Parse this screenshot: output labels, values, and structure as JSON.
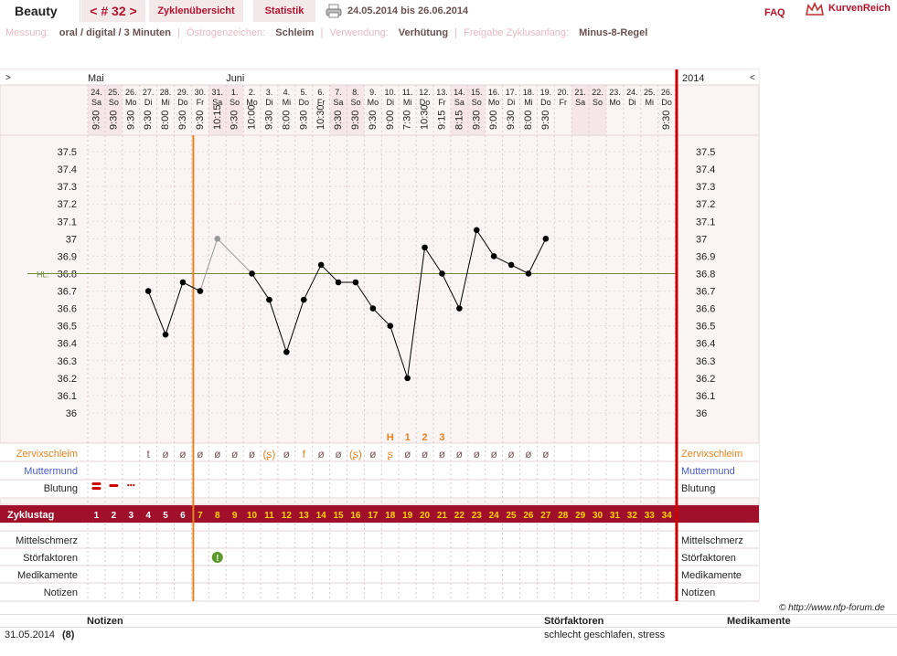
{
  "header": {
    "title": "Beauty",
    "cycle_nav": "< # 32 >",
    "tab_overview": "Zyklenübersicht",
    "tab_stats": "Statistik",
    "date_range": "24.05.2014 bis 26.06.2014",
    "faq": "FAQ",
    "brand": "KurvenReich"
  },
  "meta": {
    "measure_label": "Messung:",
    "measure_value": "oral / digital / 3 Minuten",
    "estro_label": "Östrogenzeichen:",
    "estro_value": "Schleim",
    "use_label": "Verwendung:",
    "use_value": "Verhütung",
    "release_label": "Freigabe Zyklusanfang:",
    "release_value": "Minus-8-Regel"
  },
  "nav": {
    "prev": ">",
    "next": "<",
    "year": "2014"
  },
  "months": [
    {
      "name": "Mai",
      "start_index": 0
    },
    {
      "name": "Juni",
      "start_index": 8
    }
  ],
  "days": [
    {
      "date": "24.",
      "wd": "Sa",
      "time": "9:30",
      "we": true
    },
    {
      "date": "25.",
      "wd": "So",
      "time": "9:30",
      "we": true
    },
    {
      "date": "26.",
      "wd": "Mo",
      "time": "9:30",
      "we": false
    },
    {
      "date": "27.",
      "wd": "Di",
      "time": "9:30",
      "we": false
    },
    {
      "date": "28.",
      "wd": "Mi",
      "time": "8:00",
      "we": false
    },
    {
      "date": "29.",
      "wd": "Do",
      "time": "9:30",
      "we": false
    },
    {
      "date": "30.",
      "wd": "Fr",
      "time": "9:30",
      "we": false
    },
    {
      "date": "31.",
      "wd": "Sa",
      "time": "10:15",
      "we": true
    },
    {
      "date": "1.",
      "wd": "So",
      "time": "9:30",
      "we": true
    },
    {
      "date": "2.",
      "wd": "Mo",
      "time": "10:00",
      "we": false
    },
    {
      "date": "3.",
      "wd": "Di",
      "time": "9:30",
      "we": false
    },
    {
      "date": "4.",
      "wd": "Mi",
      "time": "8:00",
      "we": false
    },
    {
      "date": "5.",
      "wd": "Do",
      "time": "9:30",
      "we": false
    },
    {
      "date": "6.",
      "wd": "Fr",
      "time": "10:30",
      "we": false
    },
    {
      "date": "7.",
      "wd": "Sa",
      "time": "9:30",
      "we": true
    },
    {
      "date": "8.",
      "wd": "So",
      "time": "9:30",
      "we": true
    },
    {
      "date": "9.",
      "wd": "Mo",
      "time": "9:30",
      "we": false
    },
    {
      "date": "10.",
      "wd": "Di",
      "time": "9:00",
      "we": false
    },
    {
      "date": "11.",
      "wd": "Mi",
      "time": "7:30",
      "we": false
    },
    {
      "date": "12.",
      "wd": "Do",
      "time": "10:30",
      "we": false
    },
    {
      "date": "13.",
      "wd": "Fr",
      "time": "9:15",
      "we": false
    },
    {
      "date": "14.",
      "wd": "Sa",
      "time": "8:15",
      "we": true
    },
    {
      "date": "15.",
      "wd": "So",
      "time": "9:30",
      "we": true
    },
    {
      "date": "16.",
      "wd": "Mo",
      "time": "9:00",
      "we": false
    },
    {
      "date": "17.",
      "wd": "Di",
      "time": "9:30",
      "we": false
    },
    {
      "date": "18.",
      "wd": "Mi",
      "time": "8:00",
      "we": false
    },
    {
      "date": "19.",
      "wd": "Do",
      "time": "9:30",
      "we": false
    },
    {
      "date": "20.",
      "wd": "Fr",
      "time": "",
      "we": false
    },
    {
      "date": "21.",
      "wd": "Sa",
      "time": "",
      "we": true
    },
    {
      "date": "22.",
      "wd": "So",
      "time": "",
      "we": true
    },
    {
      "date": "23.",
      "wd": "Mo",
      "time": "",
      "we": false
    },
    {
      "date": "24.",
      "wd": "Di",
      "time": "",
      "we": false
    },
    {
      "date": "25.",
      "wd": "Mi",
      "time": "",
      "we": false
    },
    {
      "date": "26.",
      "wd": "Do",
      "time": "9:30",
      "we": false
    }
  ],
  "chart_data": {
    "type": "line",
    "yticks": [
      "37.5",
      "37.4",
      "37.3",
      "37.2",
      "37.1",
      "37",
      "36.9",
      "36.8",
      "36.7",
      "36.6",
      "36.5",
      "36.4",
      "36.3",
      "36.2",
      "36.1",
      "36"
    ],
    "ylim": [
      36.0,
      37.5
    ],
    "hl_label": "HL:",
    "hl_value": 36.8,
    "cycle_days": [
      1,
      2,
      3,
      4,
      5,
      6,
      7,
      8,
      9,
      10,
      11,
      12,
      13,
      14,
      15,
      16,
      17,
      18,
      19,
      20,
      21,
      22,
      23,
      24,
      25,
      26,
      27,
      28,
      29,
      30,
      31,
      32,
      33,
      34
    ],
    "series": [
      {
        "values": [
          null,
          null,
          null,
          36.7,
          36.45,
          36.75,
          36.7,
          37.0,
          null,
          36.8,
          36.65,
          36.35,
          36.65,
          36.85,
          36.75,
          36.75,
          36.6,
          36.5,
          36.2,
          36.95,
          36.8,
          36.6,
          37.05,
          36.9,
          36.85,
          36.8,
          37.0,
          null,
          null,
          null,
          null,
          null,
          null,
          null
        ],
        "excluded": [
          false,
          false,
          false,
          false,
          false,
          false,
          false,
          true,
          false,
          false,
          false,
          false,
          false,
          false,
          false,
          false,
          false,
          false,
          false,
          false,
          false,
          false,
          false,
          false,
          false,
          false,
          false,
          false,
          false,
          false,
          false,
          false,
          false,
          false
        ]
      }
    ],
    "ovulation_line_after_day": 6
  },
  "markers": {
    "peak_labels": [
      {
        "day": 18,
        "text": "H"
      },
      {
        "day": 19,
        "text": "1"
      },
      {
        "day": 20,
        "text": "2"
      },
      {
        "day": 21,
        "text": "3"
      }
    ]
  },
  "rows": {
    "mucus_label": "Zervixschleim",
    "cervix_label": "Muttermund",
    "bleeding_label": "Blutung",
    "cycle_day_label": "Zyklustag",
    "pain_label": "Mittelschmerz",
    "disturb_label": "Störfaktoren",
    "meds_label": "Medikamente",
    "notes_label": "Notizen"
  },
  "mucus": [
    "",
    "",
    "",
    "t",
    "ø",
    "ø",
    "ø",
    "ø",
    "ø",
    "ø",
    "(ʂ)",
    "ø",
    "f",
    "ø",
    "ø",
    "(ʂ)",
    "ø",
    "ʂ",
    "ø",
    "ø",
    "ø",
    "ø",
    "ø",
    "ø",
    "ø",
    "ø",
    "ø",
    "",
    "",
    "",
    "",
    "",
    "",
    ""
  ],
  "mucus_peak_marked": [
    false,
    false,
    false,
    false,
    false,
    false,
    false,
    false,
    false,
    false,
    true,
    false,
    false,
    false,
    false,
    true,
    false,
    true,
    false,
    false,
    false,
    false,
    false,
    false,
    false,
    false,
    false,
    false,
    false,
    false,
    false,
    false,
    false,
    false
  ],
  "bleeding": [
    "heavy",
    "medium",
    "light",
    "",
    "",
    "",
    "",
    "",
    "",
    "",
    "",
    "",
    "",
    "",
    "",
    "",
    "",
    "",
    "",
    "",
    "",
    "",
    "",
    "",
    "",
    "",
    "",
    "",
    "",
    "",
    "",
    "",
    "",
    ""
  ],
  "disturb_marker_day": 8,
  "footer": {
    "copyright": "© http://www.nfp-forum.de",
    "col_notes": "Notizen",
    "col_disturb": "Störfaktoren",
    "col_meds": "Medikamente",
    "row_date": "31.05.2014",
    "row_day": "(8)",
    "row_disturb": "schlecht geschlafen, stress"
  },
  "colors": {
    "accent": "#b3122b",
    "cycle_bar": "#a0102a",
    "cycle_day_text": "#ffd200",
    "ovulation_line": "#e8821e",
    "right_border": "#cc0000",
    "hl_line": "#6b8e3a",
    "mucus": "#e8821e",
    "cervix": "#4a5bc4",
    "weekend": "#f6e6e9",
    "chart_bg": "#fbf4f4"
  }
}
